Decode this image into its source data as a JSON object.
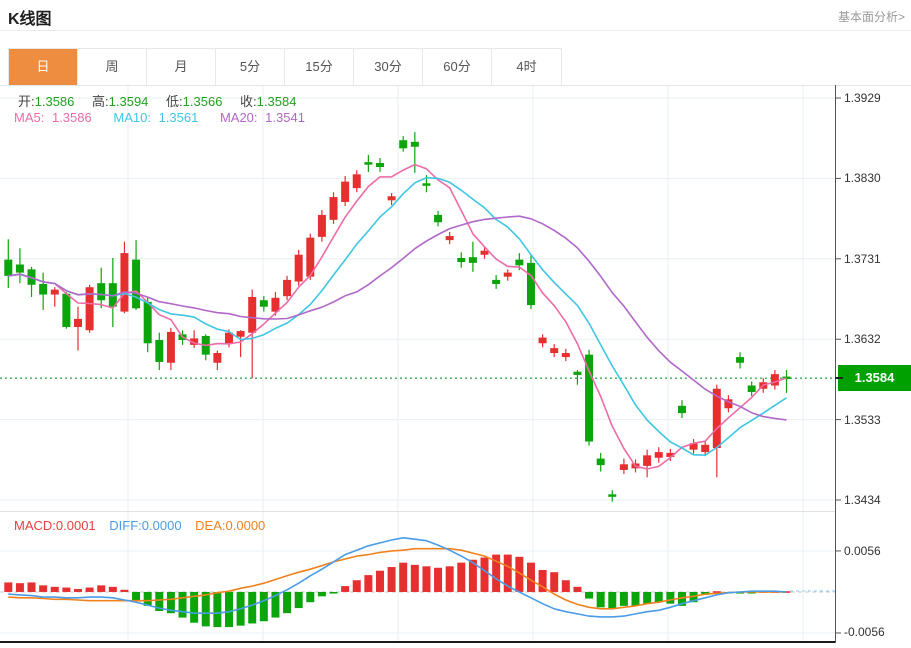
{
  "header": {
    "title": "K线图",
    "link_label": "基本面分析>"
  },
  "tabs": {
    "items": [
      "日",
      "周",
      "月",
      "5分",
      "15分",
      "30分",
      "60分",
      "4时"
    ],
    "selected": "日"
  },
  "legend": {
    "open_label": "开:",
    "open_value": "1.3586",
    "high_label": "高:",
    "high_value": "1.3594",
    "low_label": "低:",
    "low_value": "1.3566",
    "close_label": "收:",
    "close_value": "1.3584",
    "ma5_label": "MA5:",
    "ma5_value": "1.3586",
    "ma10_label": "MA10:",
    "ma10_value": "1.3561",
    "ma20_label": "MA20:",
    "ma20_value": "1.3541",
    "macd_label": "MACD:",
    "macd_value": "0.0001",
    "diff_label": "DIFF:",
    "diff_value": "0.0000",
    "dea_label": "DEA:",
    "dea_value": "0.0000"
  },
  "axis": {
    "main_tick_labels": [
      "1.3929",
      "1.3830",
      "1.3731",
      "1.3632",
      "1.3533",
      "1.3434"
    ],
    "macd_tick_labels": [
      "0.0056",
      "-0.0056"
    ],
    "current_price_label": "1.3584"
  },
  "colors": {
    "up": "#e62f2f",
    "down": "#0ba50b",
    "ma5": "#ee6ba8",
    "ma10": "#3fc6e4",
    "ma20": "#b168c8",
    "diff": "#4a9ce8",
    "dea": "#f0821e",
    "grid": "#e9eff5",
    "axis": "#555",
    "tab_selected": "#ee8c40",
    "price_label_bg": "#00a000",
    "price_line": "#3db154",
    "zero_line": "#c9c9c9",
    "trail_dash": "#9fd0f2"
  },
  "chart_data": {
    "type": "candlestick",
    "title": "K线图",
    "legend_position": "top-left",
    "main": {
      "ylim": [
        1.34217,
        1.3945
      ],
      "y_ticks": [
        1.3929,
        1.383,
        1.3731,
        1.3632,
        1.3533,
        1.3434
      ],
      "current_price": 1.3584,
      "ma_periods": [
        5,
        10,
        20
      ],
      "ma_latest": {
        "MA5": 1.3586,
        "MA10": 1.3561,
        "MA20": 1.3541
      },
      "ohlc_latest": {
        "open": 1.3586,
        "high": 1.3594,
        "low": 1.3566,
        "close": 1.3584
      },
      "candles": [
        [
          1.373,
          1.3755,
          1.3695,
          1.371
        ],
        [
          1.3724,
          1.3744,
          1.3701,
          1.3714
        ],
        [
          1.3718,
          1.3721,
          1.3684,
          1.3699
        ],
        [
          1.37,
          1.3714,
          1.3668,
          1.3687
        ],
        [
          1.3687,
          1.3696,
          1.3672,
          1.3693
        ],
        [
          1.3688,
          1.369,
          1.3645,
          1.3647
        ],
        [
          1.3647,
          1.3672,
          1.3618,
          1.3657
        ],
        [
          1.3643,
          1.3699,
          1.364,
          1.3696
        ],
        [
          1.3701,
          1.372,
          1.367,
          1.368
        ],
        [
          1.3701,
          1.3732,
          1.3647,
          1.3672
        ],
        [
          1.3666,
          1.3752,
          1.3664,
          1.3738
        ],
        [
          1.373,
          1.3754,
          1.3668,
          1.367
        ],
        [
          1.3678,
          1.3684,
          1.3616,
          1.3627
        ],
        [
          1.3631,
          1.364,
          1.3594,
          1.3604
        ],
        [
          1.3603,
          1.3646,
          1.3594,
          1.3641
        ],
        [
          1.3638,
          1.3643,
          1.3625,
          1.3631
        ],
        [
          1.3625,
          1.3643,
          1.3621,
          1.3633
        ],
        [
          1.3636,
          1.3638,
          1.3606,
          1.3613
        ],
        [
          1.3603,
          1.3618,
          1.3594,
          1.3615
        ],
        [
          1.3627,
          1.3644,
          1.3622,
          1.364
        ],
        [
          1.3635,
          1.3643,
          1.361,
          1.3642
        ],
        [
          1.364,
          1.3693,
          1.3584,
          1.3684
        ],
        [
          1.368,
          1.3685,
          1.3666,
          1.3672
        ],
        [
          1.3666,
          1.369,
          1.3661,
          1.3683
        ],
        [
          1.3685,
          1.371,
          1.368,
          1.3705
        ],
        [
          1.3703,
          1.3742,
          1.3698,
          1.3736
        ],
        [
          1.3709,
          1.3762,
          1.3705,
          1.3757
        ],
        [
          1.3758,
          1.3791,
          1.3752,
          1.3785
        ],
        [
          1.3779,
          1.3813,
          1.3774,
          1.3807
        ],
        [
          1.3801,
          1.3833,
          1.3796,
          1.3826
        ],
        [
          1.3818,
          1.384,
          1.3813,
          1.3835
        ],
        [
          1.385,
          1.3859,
          1.3838,
          1.3847
        ],
        [
          1.3849,
          1.3855,
          1.3838,
          1.3844
        ],
        [
          1.3803,
          1.3812,
          1.3797,
          1.3808
        ],
        [
          1.3877,
          1.3882,
          1.3863,
          1.3867
        ],
        [
          1.3875,
          1.3887,
          1.3837,
          1.3869
        ],
        [
          1.3824,
          1.3834,
          1.3813,
          1.3821
        ],
        [
          1.3785,
          1.379,
          1.3771,
          1.3776
        ],
        [
          1.3754,
          1.3764,
          1.3749,
          1.3759
        ],
        [
          1.3732,
          1.3739,
          1.372,
          1.3727
        ],
        [
          1.3733,
          1.3752,
          1.3715,
          1.3726
        ],
        [
          1.3736,
          1.3746,
          1.3731,
          1.3741
        ],
        [
          1.3705,
          1.3711,
          1.3694,
          1.37
        ],
        [
          1.3709,
          1.3718,
          1.3704,
          1.3714
        ],
        [
          1.373,
          1.3738,
          1.3717,
          1.3723
        ],
        [
          1.3726,
          1.3736,
          1.3669,
          1.3674
        ],
        [
          1.3627,
          1.3638,
          1.3622,
          1.3634
        ],
        [
          1.3615,
          1.3626,
          1.361,
          1.3621
        ],
        [
          1.361,
          1.362,
          1.3605,
          1.3615
        ],
        [
          1.3592,
          1.3594,
          1.3576,
          1.3588
        ],
        [
          1.3613,
          1.3619,
          1.3501,
          1.3506
        ],
        [
          1.3485,
          1.3492,
          1.3469,
          1.3477
        ],
        [
          1.3441,
          1.3446,
          1.3432,
          1.3438
        ],
        [
          1.3471,
          1.3485,
          1.3466,
          1.3478
        ],
        [
          1.3473,
          1.3484,
          1.3468,
          1.3479
        ],
        [
          1.3476,
          1.3496,
          1.3462,
          1.3489
        ],
        [
          1.3486,
          1.3499,
          1.348,
          1.3493
        ],
        [
          1.3487,
          1.3497,
          1.3482,
          1.3492
        ],
        [
          1.355,
          1.3557,
          1.3535,
          1.3541
        ],
        [
          1.3496,
          1.3509,
          1.3491,
          1.3504
        ],
        [
          1.3493,
          1.3507,
          1.3488,
          1.3502
        ],
        [
          1.3498,
          1.3576,
          1.3462,
          1.3571
        ],
        [
          1.3547,
          1.3563,
          1.3542,
          1.3558
        ],
        [
          1.361,
          1.3616,
          1.3596,
          1.3603
        ],
        [
          1.3575,
          1.358,
          1.3562,
          1.3567
        ],
        [
          1.3571,
          1.3584,
          1.3566,
          1.3579
        ],
        [
          1.3575,
          1.3594,
          1.357,
          1.3589
        ],
        [
          1.3586,
          1.3594,
          1.3566,
          1.3584
        ]
      ]
    },
    "macd": {
      "ylim": [
        -0.00697,
        0.01078
      ],
      "y_ticks": [
        0.0056,
        -0.0056
      ],
      "latest": {
        "MACD": 0.0001,
        "DIFF": 0.0,
        "DEA": 0.0
      },
      "histogram": [
        0.0013,
        0.0012,
        0.0013,
        0.0009,
        0.0007,
        0.0006,
        0.0004,
        0.0006,
        0.0009,
        0.0007,
        0.0003,
        -0.0012,
        -0.0019,
        -0.0026,
        -0.0029,
        -0.0035,
        -0.0042,
        -0.0047,
        -0.0048,
        -0.0048,
        -0.0046,
        -0.0043,
        -0.004,
        -0.0035,
        -0.0029,
        -0.0022,
        -0.0014,
        -0.0006,
        -0.0002,
        0.0008,
        0.0016,
        0.0023,
        0.0029,
        0.0034,
        0.004,
        0.0037,
        0.0035,
        0.0033,
        0.0035,
        0.004,
        0.0044,
        0.0047,
        0.0051,
        0.0051,
        0.0048,
        0.004,
        0.003,
        0.0027,
        0.0016,
        0.0007,
        -0.0009,
        -0.0021,
        -0.0023,
        -0.0019,
        -0.0019,
        -0.0016,
        -0.0014,
        -0.0016,
        -0.0019,
        -0.0014,
        -0.0004,
        0.0001,
        -0.0001,
        -0.0002,
        -0.0001,
        0.0001,
        0.0001,
        0.0001
      ],
      "diff": [
        -0.0003,
        -0.0004,
        -0.0005,
        -0.0007,
        -0.0007,
        -0.0008,
        -0.0008,
        -0.0007,
        -0.0007,
        -0.0008,
        -0.0011,
        -0.0014,
        -0.0018,
        -0.0022,
        -0.0025,
        -0.0027,
        -0.0029,
        -0.0029,
        -0.0029,
        -0.0027,
        -0.0023,
        -0.0018,
        -0.0012,
        -0.0005,
        0.0003,
        0.0012,
        0.0022,
        0.0031,
        0.0041,
        0.0051,
        0.0057,
        0.0063,
        0.0067,
        0.0071,
        0.0074,
        0.0072,
        0.007,
        0.0064,
        0.0057,
        0.0049,
        0.004,
        0.0029,
        0.0018,
        0.0008,
        0.0,
        -0.0008,
        -0.0016,
        -0.0023,
        -0.0027,
        -0.003,
        -0.0033,
        -0.0034,
        -0.0034,
        -0.0033,
        -0.003,
        -0.0027,
        -0.0025,
        -0.0021,
        -0.0016,
        -0.0012,
        -0.0008,
        -0.0004,
        -0.0001,
        0.0,
        0.0001,
        0.0001,
        0.0001,
        0.0
      ],
      "dea": [
        -0.0007,
        -0.0008,
        -0.0008,
        -0.0009,
        -0.001,
        -0.001,
        -0.0011,
        -0.0012,
        -0.0012,
        -0.0012,
        -0.0012,
        -0.0012,
        -0.0012,
        -0.0011,
        -0.001,
        -0.0008,
        -0.0006,
        -0.0004,
        -0.0001,
        0.0001,
        0.0005,
        0.0008,
        0.0012,
        0.0017,
        0.0022,
        0.0027,
        0.0031,
        0.0036,
        0.0041,
        0.0045,
        0.0049,
        0.0051,
        0.0054,
        0.0056,
        0.0057,
        0.0059,
        0.0059,
        0.0059,
        0.0059,
        0.0057,
        0.0053,
        0.0049,
        0.0042,
        0.0035,
        0.0026,
        0.0016,
        0.0007,
        -0.0003,
        -0.0011,
        -0.0017,
        -0.0021,
        -0.0023,
        -0.0023,
        -0.0021,
        -0.0019,
        -0.0016,
        -0.0014,
        -0.0011,
        -0.0008,
        -0.0006,
        -0.0003,
        -0.0002,
        -0.0001,
        0.0,
        0.0,
        0.0,
        0.0,
        0.0
      ]
    }
  }
}
